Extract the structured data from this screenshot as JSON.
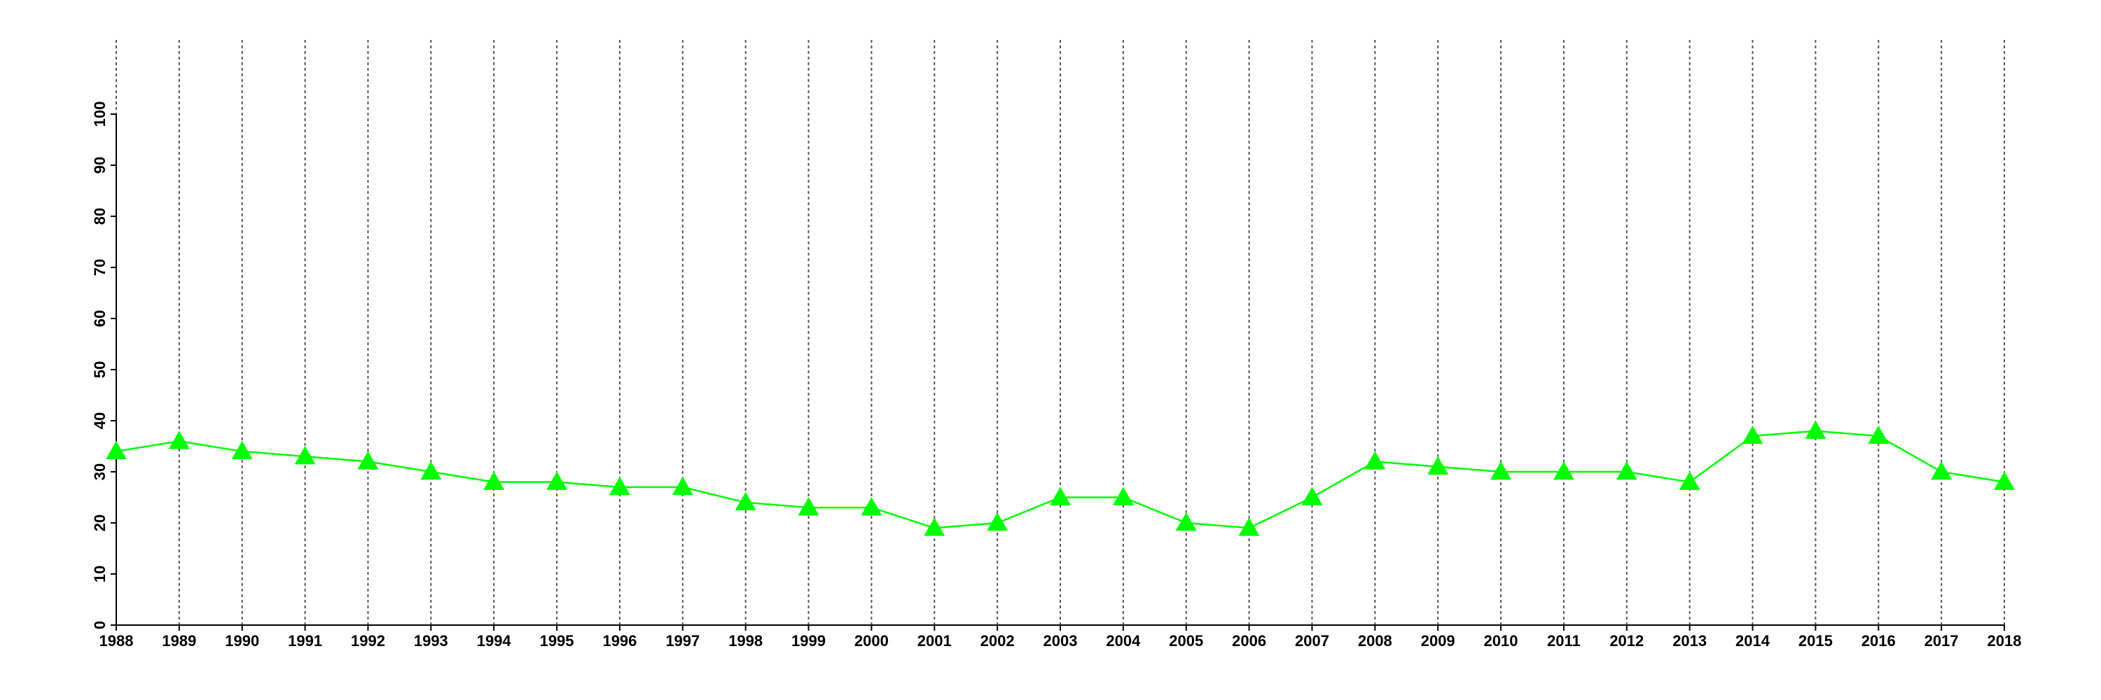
{
  "chart_data": {
    "type": "line",
    "x": [
      1988,
      1989,
      1990,
      1991,
      1992,
      1993,
      1994,
      1995,
      1996,
      1997,
      1998,
      1999,
      2000,
      2001,
      2002,
      2003,
      2004,
      2005,
      2006,
      2007,
      2008,
      2009,
      2010,
      2011,
      2012,
      2013,
      2014,
      2015,
      2016,
      2017,
      2018
    ],
    "values": [
      34,
      36,
      34,
      33,
      32,
      30,
      28,
      28,
      27,
      27,
      24,
      23,
      23,
      19,
      20,
      25,
      25,
      20,
      19,
      25,
      32,
      31,
      30,
      30,
      30,
      28,
      37,
      38,
      37,
      30,
      28
    ],
    "color": "#00ff00",
    "xlim": [
      1988,
      2018
    ],
    "xticks": [
      1988,
      1989,
      1990,
      1991,
      1992,
      1993,
      1994,
      1995,
      1996,
      1997,
      1998,
      1999,
      2000,
      2001,
      2002,
      2003,
      2004,
      2005,
      2006,
      2007,
      2008,
      2009,
      2010,
      2011,
      2012,
      2013,
      2014,
      2015,
      2016,
      2017,
      2018
    ],
    "ylim": [
      0,
      100
    ],
    "yticks": [
      0,
      10,
      20,
      30,
      40,
      50,
      60,
      70,
      80,
      90,
      100
    ],
    "grid": "x"
  }
}
